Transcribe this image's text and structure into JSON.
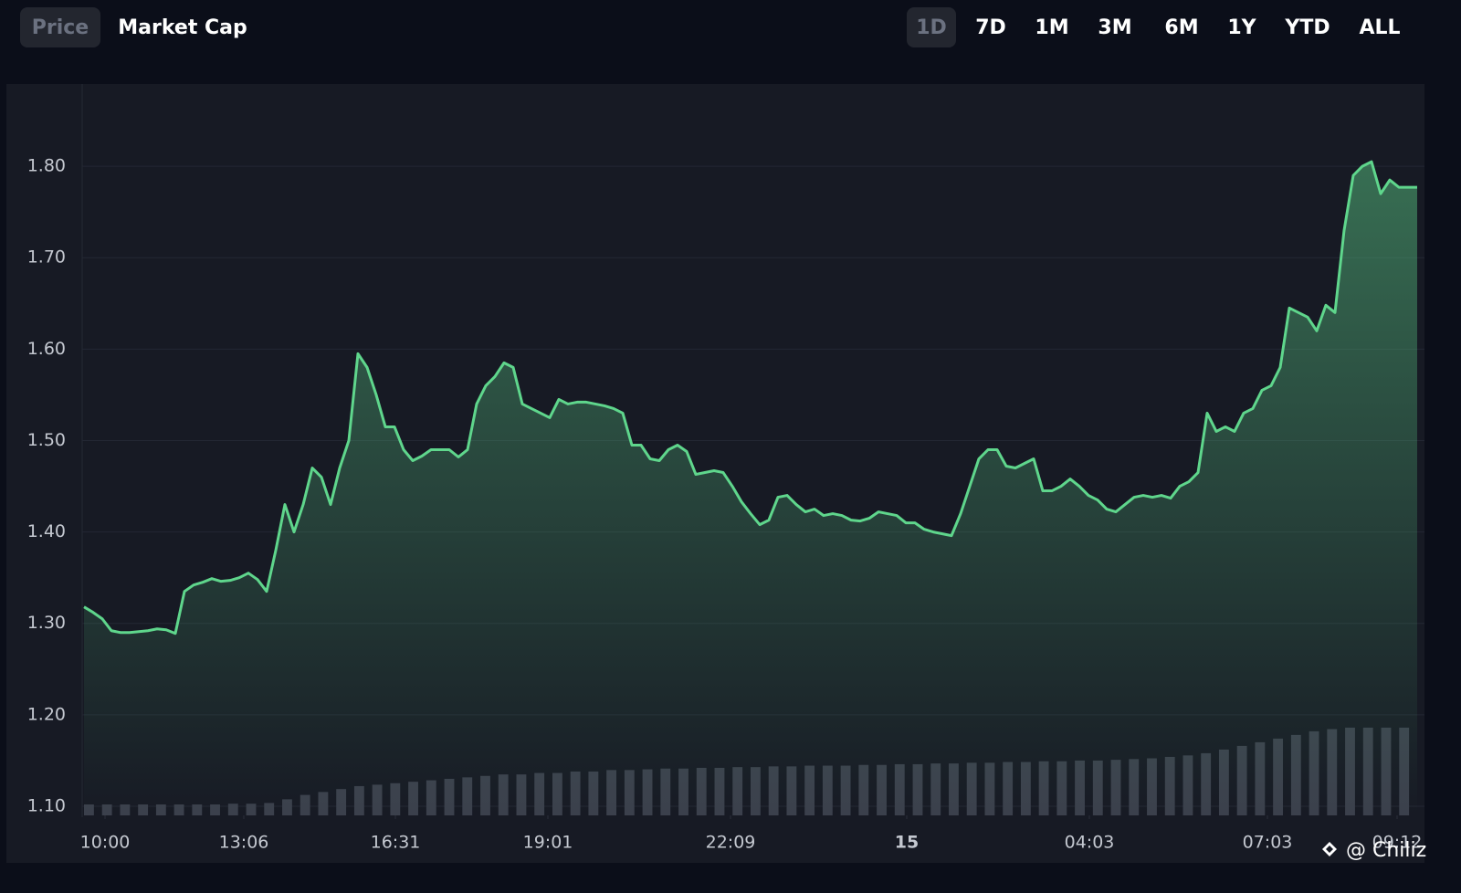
{
  "tabs": {
    "metric": [
      "Price",
      "Market Cap"
    ],
    "metric_active": 0,
    "range": [
      "1D",
      "7D",
      "1M",
      "3M",
      "6M",
      "1Y",
      "YTD",
      "ALL"
    ],
    "range_active": 0
  },
  "chart_data": {
    "type": "area",
    "watermark": "@ Chiliz",
    "xlim": [
      0,
      146
    ],
    "xticks": [
      {
        "value": 2.3,
        "label": "10:00"
      },
      {
        "value": 17.5,
        "label": "13:06"
      },
      {
        "value": 34.1,
        "label": "16:31"
      },
      {
        "value": 50.8,
        "label": "19:01"
      },
      {
        "value": 70.8,
        "label": "22:09"
      },
      {
        "value": 90.1,
        "label": "15",
        "bold": true
      },
      {
        "value": 110.1,
        "label": "04:03"
      },
      {
        "value": 129.6,
        "label": "07:03"
      },
      {
        "value": 143.8,
        "label": "09:12"
      }
    ],
    "ylim": [
      1.09,
      1.89
    ],
    "yticks": [
      {
        "value": 1.1,
        "label": "1.10"
      },
      {
        "value": 1.2,
        "label": "1.20"
      },
      {
        "value": 1.3,
        "label": "1.30"
      },
      {
        "value": 1.4,
        "label": "1.40"
      },
      {
        "value": 1.5,
        "label": "1.50"
      },
      {
        "value": 1.6,
        "label": "1.60"
      },
      {
        "value": 1.7,
        "label": "1.70"
      },
      {
        "value": 1.8,
        "label": "1.80"
      }
    ],
    "y2lim": [
      0,
      100
    ],
    "grid": true,
    "series": [
      {
        "name": "Price",
        "color": "#5fd68c",
        "values": [
          1.318,
          1.312,
          1.305,
          1.292,
          1.29,
          1.29,
          1.291,
          1.292,
          1.294,
          1.293,
          1.289,
          1.335,
          1.342,
          1.345,
          1.349,
          1.346,
          1.347,
          1.35,
          1.355,
          1.348,
          1.335,
          1.38,
          1.43,
          1.4,
          1.43,
          1.47,
          1.46,
          1.43,
          1.47,
          1.5,
          1.595,
          1.58,
          1.55,
          1.515,
          1.515,
          1.49,
          1.478,
          1.483,
          1.49,
          1.49,
          1.49,
          1.482,
          1.49,
          1.54,
          1.56,
          1.57,
          1.585,
          1.58,
          1.54,
          1.535,
          1.53,
          1.525,
          1.545,
          1.54,
          1.542,
          1.542,
          1.54,
          1.538,
          1.535,
          1.53,
          1.495,
          1.495,
          1.48,
          1.478,
          1.49,
          1.495,
          1.488,
          1.463,
          1.465,
          1.467,
          1.465,
          1.45,
          1.433,
          1.42,
          1.408,
          1.413,
          1.438,
          1.44,
          1.43,
          1.422,
          1.425,
          1.418,
          1.42,
          1.418,
          1.413,
          1.412,
          1.415,
          1.422,
          1.42,
          1.418,
          1.41,
          1.41,
          1.403,
          1.4,
          1.398,
          1.396,
          1.42,
          1.45,
          1.48,
          1.49,
          1.49,
          1.472,
          1.47,
          1.475,
          1.48,
          1.445,
          1.445,
          1.45,
          1.458,
          1.45,
          1.44,
          1.435,
          1.425,
          1.422,
          1.43,
          1.438,
          1.44,
          1.438,
          1.44,
          1.437,
          1.45,
          1.455,
          1.465,
          1.53,
          1.51,
          1.515,
          1.51,
          1.53,
          1.535,
          1.555,
          1.56,
          1.58,
          1.645,
          1.64,
          1.635,
          1.62,
          1.648,
          1.64,
          1.73,
          1.79,
          1.8,
          1.805,
          1.77,
          1.785,
          1.777,
          1.777,
          1.777
        ]
      },
      {
        "name": "Volume",
        "color": "#3b404c",
        "axis": "y2",
        "values": [
          1.5,
          1.5,
          1.5,
          1.5,
          1.5,
          1.5,
          1.5,
          1.5,
          1.6,
          1.6,
          1.7,
          2.2,
          2.8,
          3.2,
          3.6,
          4.0,
          4.2,
          4.4,
          4.6,
          4.8,
          5.0,
          5.2,
          5.4,
          5.6,
          5.6,
          5.8,
          5.8,
          6.0,
          6.0,
          6.2,
          6.2,
          6.3,
          6.4,
          6.4,
          6.5,
          6.5,
          6.6,
          6.6,
          6.7,
          6.7,
          6.8,
          6.8,
          6.8,
          6.9,
          6.9,
          7.0,
          7.0,
          7.1,
          7.1,
          7.2,
          7.2,
          7.3,
          7.3,
          7.4,
          7.4,
          7.5,
          7.5,
          7.6,
          7.7,
          7.8,
          8.0,
          8.2,
          8.5,
          9.0,
          9.5,
          10.0,
          10.5,
          11.0,
          11.5,
          11.8,
          12.0,
          12.0,
          12.0,
          12.0
        ]
      }
    ]
  }
}
